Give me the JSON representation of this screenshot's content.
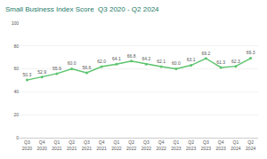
{
  "chart_data": {
    "type": "line",
    "title": "Small Business Index Score  Q3 2020 - Q2 2024",
    "categories": [
      "Q3 2020",
      "Q4 2020",
      "Q1 2021",
      "Q2 2021",
      "Q3 2021",
      "Q4 2021",
      "Q1 2022",
      "Q2 2022",
      "Q3 2022",
      "Q4 2022",
      "Q1 2023",
      "Q2 2023",
      "Q3 2023",
      "Q4 2023",
      "Q1 2024",
      "Q2 2024"
    ],
    "values": [
      50.3,
      52.9,
      55.9,
      60.0,
      56.6,
      62.0,
      64.1,
      66.8,
      64.2,
      62.1,
      60.0,
      63.1,
      69.2,
      61.3,
      62.3,
      69.3
    ],
    "value_labels": [
      "50.3",
      "52.9",
      "55.9",
      "60.0",
      "56.6",
      "62.0",
      "64.1",
      "66.8",
      "64.2",
      "62.1",
      "60.0",
      "63.1",
      "69.2",
      "61.3",
      "62.3",
      "69.3"
    ],
    "color": "#5cc46e",
    "marker": "circle",
    "ylim": [
      0,
      100
    ],
    "yticks": [
      0,
      20,
      40,
      60,
      80,
      100
    ],
    "grid": true,
    "data_labels": true
  }
}
